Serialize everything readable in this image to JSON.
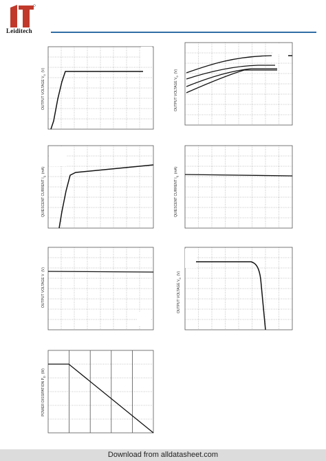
{
  "brand": {
    "name": "Leiditech",
    "accent": "#c0392b",
    "rule_color": "#2e6da4"
  },
  "graphs": {
    "g1": {
      "ylabel": "OUTPUT VOLTAGE   V",
      "sub": "o",
      "unit": "(V)"
    },
    "g2": {
      "ylabel": "OUTPUT VOLTAGE   V",
      "sub": "o",
      "unit": "(V)"
    },
    "g3": {
      "ylabel": "QUIESCENT CURRENT   I",
      "sub": "q",
      "unit": "(mA)"
    },
    "g4": {
      "ylabel": "QUIESCENT CURRENT   I",
      "sub": "q",
      "unit": "(mA)"
    },
    "g5": {
      "ylabel": "OUTPUT VOLTAGE   V",
      "sub": "",
      "unit": "(V)"
    },
    "g6": {
      "ylabel": "OUTPUT VOLTAGE   V",
      "sub": "o",
      "unit": "(V)"
    },
    "g7": {
      "ylabel": "POWER DISSIPATION   P",
      "sub": "D",
      "unit": "(W)"
    }
  },
  "footer": {
    "text": "Download from alldatasheet.com"
  }
}
